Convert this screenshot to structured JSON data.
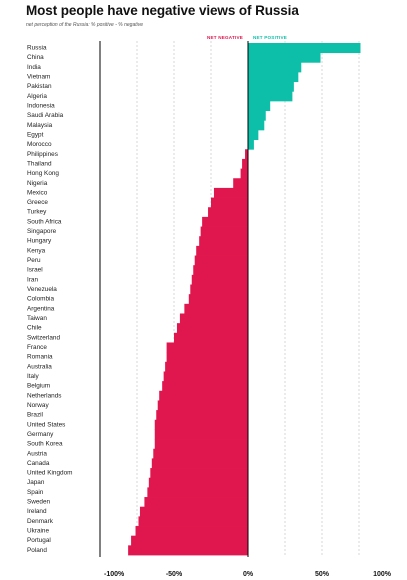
{
  "title": "Most people have negative views of Russia",
  "subtitle": "net perception of the Russia: % positive - % negative",
  "colors": {
    "negative": "#e0174e",
    "positive": "#0dbfa9",
    "axis": "#000000",
    "grid": "#bdbdbd"
  },
  "chart_data": {
    "type": "bar",
    "orientation": "horizontal",
    "legend": [
      {
        "label": "NET NEGATIVE",
        "color": "#e0174e"
      },
      {
        "label": "NET POSITIVE",
        "color": "#0dbfa9"
      }
    ],
    "categories": [
      "Russia",
      "China",
      "India",
      "Vietnam",
      "Pakistan",
      "Algeria",
      "Indonesia",
      "Saudi Arabia",
      "Malaysia",
      "Egypt",
      "Morocco",
      "Philippines",
      "Thailand",
      "Hong Kong",
      "Nigeria",
      "Mexico",
      "Greece",
      "Turkey",
      "South Africa",
      "Singapore",
      "Hungary",
      "Kenya",
      "Peru",
      "Israel",
      "Iran",
      "Venezuela",
      "Colombia",
      "Argentina",
      "Taiwan",
      "Chile",
      "Switzerland",
      "France",
      "Romania",
      "Australia",
      "Italy",
      "Belgium",
      "Netherlands",
      "Norway",
      "Brazil",
      "United States",
      "Germany",
      "South Korea",
      "Austria",
      "Canada",
      "United Kingdom",
      "Japan",
      "Spain",
      "Sweden",
      "Ireland",
      "Denmark",
      "Ukraine",
      "Portugal",
      "Poland"
    ],
    "values": [
      76,
      49,
      36,
      34,
      31,
      30,
      15,
      12,
      11,
      7,
      4,
      -2,
      -4,
      -5,
      -10,
      -23,
      -25,
      -27,
      -31,
      -32,
      -33,
      -35,
      -36,
      -37,
      -38,
      -39,
      -40,
      -43,
      -46,
      -48,
      -50,
      -55,
      -55,
      -56,
      -57,
      -58,
      -60,
      -61,
      -62,
      -63,
      -63,
      -63,
      -64,
      -65,
      -66,
      -67,
      -68,
      -70,
      -73,
      -74,
      -76,
      -79,
      -81
    ],
    "xlim": [
      -100,
      100
    ],
    "xticks": [
      {
        "value": -100,
        "label": "-100%"
      },
      {
        "value": -50,
        "label": "-50%"
      },
      {
        "value": 0,
        "label": "0%"
      },
      {
        "value": 50,
        "label": "50%"
      },
      {
        "value": 100,
        "label": "100%"
      }
    ],
    "gridlines": [
      -75,
      -50,
      -25,
      25,
      50,
      75
    ],
    "grid": true
  }
}
